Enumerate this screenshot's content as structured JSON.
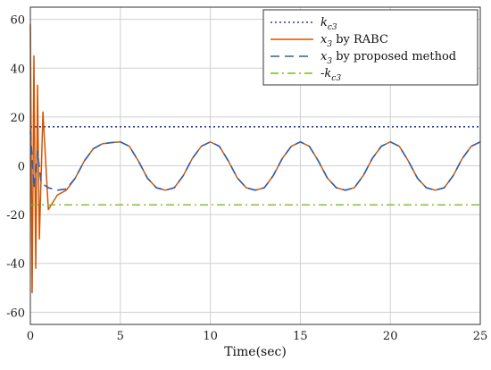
{
  "chart_data": {
    "type": "line",
    "title": "",
    "xlabel": "Time(sec)",
    "ylabel": "",
    "xlim": [
      0,
      25
    ],
    "ylim": [
      -65,
      65
    ],
    "xticks": [
      0,
      5,
      10,
      15,
      20,
      25
    ],
    "yticks": [
      -60,
      -40,
      -20,
      0,
      20,
      40,
      60
    ],
    "grid": true,
    "legend_position": "top-right",
    "series": [
      {
        "name": "k_c3",
        "label_main": "k",
        "label_sub": "c3",
        "label_rest": "",
        "color": "#3333aa",
        "style": "dotted",
        "x": [
          0,
          25
        ],
        "y": [
          16,
          16
        ]
      },
      {
        "name": "x3 by RABC",
        "label_main": "x",
        "label_sub": "3",
        "label_rest": " by RABC",
        "color": "#d35400",
        "style": "solid",
        "x": [
          0,
          0.1,
          0.2,
          0.3,
          0.4,
          0.5,
          0.7,
          1.0,
          1.5,
          2.0,
          2.5,
          3,
          3.5,
          4,
          4.5,
          5,
          5.5,
          6,
          6.5,
          7,
          7.5,
          8,
          8.5,
          9,
          9.5,
          10,
          10.5,
          11,
          11.5,
          12,
          12.5,
          13,
          13.5,
          14,
          14.5,
          15,
          15.5,
          16,
          16.5,
          17,
          17.5,
          18,
          18.5,
          19,
          19.5,
          20,
          20.5,
          21,
          21.5,
          22,
          22.5,
          23,
          23.5,
          24,
          24.5,
          25
        ],
        "y": [
          58,
          -52,
          45,
          -42,
          33,
          -30,
          22,
          -18,
          -12,
          -10,
          -5,
          2,
          7,
          9,
          9.5,
          9.8,
          8,
          2,
          -5,
          -9,
          -10,
          -9,
          -4,
          3,
          8,
          9.8,
          8,
          2,
          -5,
          -9,
          -10,
          -9,
          -4,
          3,
          8,
          9.8,
          8,
          2,
          -5,
          -9,
          -10,
          -9,
          -4,
          3,
          8,
          9.8,
          8,
          2,
          -5,
          -9,
          -10,
          -9,
          -4,
          3,
          8,
          9.8
        ]
      },
      {
        "name": "x3 by proposed method",
        "label_main": "x",
        "label_sub": "3",
        "label_rest": " by proposed method",
        "color": "#2f5faa",
        "style": "dashed",
        "x": [
          0,
          0.2,
          0.4,
          0.6,
          0.8,
          1.0,
          1.5,
          2.0,
          2.5,
          3,
          3.5,
          4,
          4.5,
          5,
          5.5,
          6,
          6.5,
          7,
          7.5,
          8,
          8.5,
          9,
          9.5,
          10,
          10.5,
          11,
          11.5,
          12,
          12.5,
          13,
          13.5,
          14,
          14.5,
          15,
          15.5,
          16,
          16.5,
          17,
          17.5,
          18,
          18.5,
          19,
          19.5,
          20,
          20.5,
          21,
          21.5,
          22,
          22.5,
          23,
          23.5,
          24,
          24.5,
          25
        ],
        "y": [
          14,
          -9,
          6,
          -7,
          -8,
          -9,
          -10,
          -9.5,
          -5,
          2,
          7,
          9,
          9.5,
          9.8,
          8,
          2,
          -5,
          -9,
          -10,
          -9,
          -4,
          3,
          8,
          9.8,
          8,
          2,
          -5,
          -9,
          -10,
          -9,
          -4,
          3,
          8,
          9.8,
          8,
          2,
          -5,
          -9,
          -10,
          -9,
          -4,
          3,
          8,
          9.8,
          8,
          2,
          -5,
          -9,
          -10,
          -9,
          -4,
          3,
          8,
          9.8
        ]
      },
      {
        "name": "-k_c3",
        "label_main": "-k",
        "label_sub": "c3",
        "label_rest": "",
        "color": "#77bb22",
        "style": "dashdot",
        "x": [
          0,
          25
        ],
        "y": [
          -16,
          -16
        ]
      }
    ]
  }
}
